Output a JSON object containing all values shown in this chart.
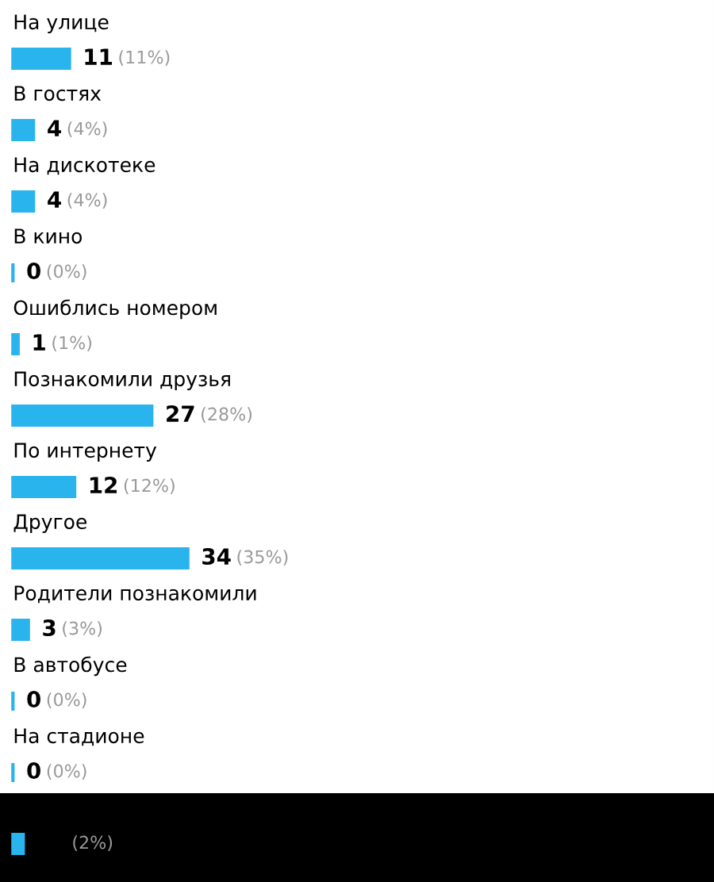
{
  "chart_data": {
    "type": "bar",
    "orientation": "horizontal",
    "categories": [
      "На улице",
      "В гостях",
      "На дискотеке",
      "В кино",
      "Ошиблись номером",
      "Познакомили друзья",
      "По интернету",
      "Другое",
      "Родители познакомили",
      "В автобусе",
      "На стадионе",
      null
    ],
    "values": [
      11,
      4,
      4,
      0,
      1,
      27,
      12,
      34,
      3,
      0,
      0,
      2
    ],
    "color": "#2ab4ee",
    "value_labels": [
      "11 (11%)",
      "4 (4%)",
      "4 (4%)",
      "0 (0%)",
      "1 (1%)",
      "27 (28%)",
      "12 (12%)",
      "34 (35%)",
      "3 (3%)",
      "0 (0%)",
      "0 (0%)",
      "(2%)"
    ]
  }
}
